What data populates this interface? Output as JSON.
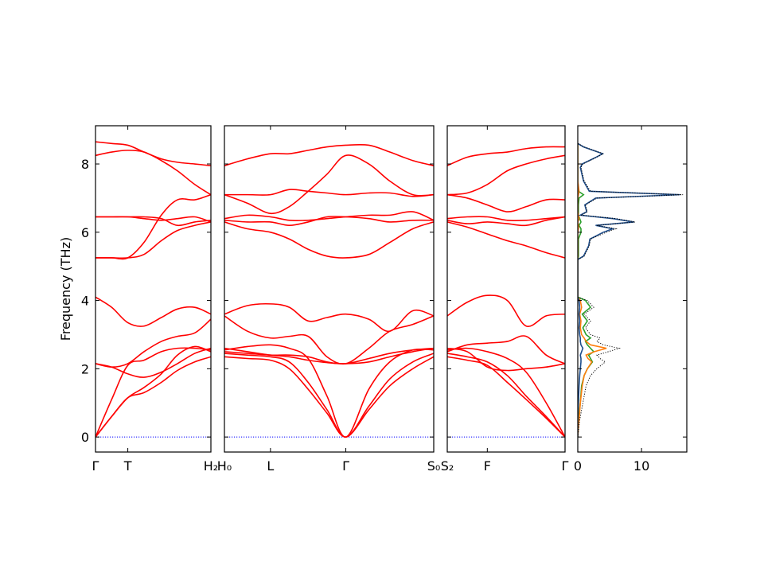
{
  "chart_data": [
    {
      "type": "line",
      "ylabel": "Frequency (THz)",
      "ylim": [
        -0.44,
        9.12
      ],
      "yticks": [
        0,
        2,
        4,
        6,
        8
      ],
      "show_ytick_labels": true,
      "xlim": [
        0,
        1
      ],
      "xticks": [
        {
          "value": 0,
          "label": "Γ"
        },
        {
          "value": 0.28,
          "label": "T"
        },
        {
          "value": 1,
          "label": "H₂"
        }
      ],
      "hline": {
        "value": 0,
        "color": "#0000ff",
        "style": "dotted"
      },
      "color": "#ff0000",
      "x": [
        0,
        0.14,
        0.28,
        0.42,
        0.57,
        0.71,
        0.86,
        1
      ],
      "bands": [
        [
          0,
          0.6,
          1.15,
          1.3,
          1.6,
          1.95,
          2.2,
          2.35
        ],
        [
          0,
          0.6,
          1.15,
          1.45,
          1.85,
          2.4,
          2.65,
          2.5
        ],
        [
          0,
          1.1,
          2.1,
          2.25,
          2.5,
          2.6,
          2.6,
          2.55
        ],
        [
          2.15,
          2.05,
          2.15,
          2.5,
          2.8,
          2.95,
          3.05,
          3.45
        ],
        [
          2.15,
          2.05,
          1.85,
          1.75,
          1.9,
          2.15,
          2.45,
          2.6
        ],
        [
          4.1,
          3.8,
          3.35,
          3.25,
          3.5,
          3.75,
          3.8,
          3.6
        ],
        [
          5.25,
          5.25,
          5.25,
          5.7,
          6.5,
          6.95,
          6.95,
          7.1
        ],
        [
          5.25,
          5.25,
          5.25,
          5.35,
          5.75,
          6.05,
          6.2,
          6.3
        ],
        [
          6.45,
          6.45,
          6.45,
          6.4,
          6.35,
          6.4,
          6.45,
          6.3
        ],
        [
          6.45,
          6.45,
          6.45,
          6.45,
          6.4,
          6.2,
          6.3,
          6.35
        ],
        [
          8.25,
          8.35,
          8.4,
          8.35,
          8.1,
          7.8,
          7.4,
          7.1
        ],
        [
          8.65,
          8.6,
          8.55,
          8.35,
          8.15,
          8.05,
          8.0,
          7.95
        ]
      ]
    },
    {
      "type": "line",
      "ylim": [
        -0.44,
        9.12
      ],
      "yticks": [
        0,
        2,
        4,
        6,
        8
      ],
      "show_ytick_labels": false,
      "xlim": [
        0,
        1
      ],
      "xticks": [
        {
          "value": 0,
          "label": "H₀"
        },
        {
          "value": 0.22,
          "label": "L"
        },
        {
          "value": 0.58,
          "label": "Γ"
        },
        {
          "value": 1,
          "label": "S₀"
        }
      ],
      "hline": {
        "value": 0,
        "color": "#0000ff",
        "style": "dotted"
      },
      "color": "#ff0000",
      "x": [
        0,
        0.11,
        0.22,
        0.31,
        0.4,
        0.49,
        0.58,
        0.69,
        0.79,
        0.9,
        1
      ],
      "bands": [
        [
          2.35,
          2.3,
          2.25,
          2.0,
          1.4,
          0.7,
          0,
          0.8,
          1.5,
          2.0,
          2.35
        ],
        [
          2.45,
          2.4,
          2.35,
          2.2,
          1.6,
          0.8,
          0,
          0.9,
          1.7,
          2.2,
          2.45
        ],
        [
          2.55,
          2.65,
          2.7,
          2.6,
          2.3,
          1.2,
          0,
          1.4,
          2.2,
          2.55,
          2.55
        ],
        [
          2.6,
          2.5,
          2.4,
          2.35,
          2.25,
          2.18,
          2.15,
          2.2,
          2.35,
          2.5,
          2.6
        ],
        [
          2.5,
          2.45,
          2.4,
          2.4,
          2.35,
          2.2,
          2.15,
          2.3,
          2.45,
          2.55,
          2.6
        ],
        [
          3.55,
          3.1,
          2.9,
          2.95,
          2.95,
          2.35,
          2.15,
          2.6,
          3.1,
          3.3,
          3.55
        ],
        [
          3.6,
          3.85,
          3.9,
          3.8,
          3.4,
          3.5,
          3.6,
          3.45,
          3.1,
          3.7,
          3.55
        ],
        [
          6.3,
          6.1,
          6.0,
          5.8,
          5.5,
          5.3,
          5.25,
          5.35,
          5.7,
          6.1,
          6.3
        ],
        [
          6.35,
          6.3,
          6.3,
          6.2,
          6.3,
          6.45,
          6.45,
          6.4,
          6.3,
          6.35,
          6.35
        ],
        [
          6.4,
          6.5,
          6.45,
          6.35,
          6.35,
          6.4,
          6.45,
          6.5,
          6.5,
          6.6,
          6.35
        ],
        [
          7.1,
          7.1,
          7.1,
          7.25,
          7.2,
          7.15,
          7.1,
          7.15,
          7.15,
          7.05,
          7.1
        ],
        [
          7.1,
          6.85,
          6.55,
          6.75,
          7.2,
          7.7,
          8.25,
          8.0,
          7.5,
          7.1,
          7.1
        ],
        [
          7.95,
          8.15,
          8.3,
          8.3,
          8.4,
          8.5,
          8.55,
          8.55,
          8.35,
          8.1,
          7.95
        ]
      ]
    },
    {
      "type": "line",
      "ylim": [
        -0.44,
        9.12
      ],
      "yticks": [
        0,
        2,
        4,
        6,
        8
      ],
      "show_ytick_labels": false,
      "xlim": [
        0,
        1
      ],
      "xticks": [
        {
          "value": 0,
          "label": "S₂"
        },
        {
          "value": 0.34,
          "label": "F"
        },
        {
          "value": 1,
          "label": "Γ"
        }
      ],
      "hline": {
        "value": 0,
        "color": "#0000ff",
        "style": "dotted"
      },
      "color": "#ff0000",
      "x": [
        0,
        0.17,
        0.34,
        0.51,
        0.67,
        0.84,
        1
      ],
      "bands": [
        [
          2.35,
          2.25,
          2.1,
          1.6,
          1.1,
          0.55,
          0
        ],
        [
          2.45,
          2.35,
          2.2,
          1.8,
          1.2,
          0.6,
          0
        ],
        [
          2.55,
          2.6,
          2.5,
          2.3,
          1.9,
          1.0,
          0
        ],
        [
          2.6,
          2.5,
          2.05,
          1.95,
          2.0,
          2.05,
          2.15
        ],
        [
          2.5,
          2.7,
          2.75,
          2.8,
          2.95,
          2.4,
          2.15
        ],
        [
          3.55,
          3.95,
          4.15,
          4.0,
          3.25,
          3.55,
          3.6
        ],
        [
          6.3,
          6.15,
          5.95,
          5.75,
          5.6,
          5.4,
          5.25
        ],
        [
          6.35,
          6.25,
          6.3,
          6.25,
          6.2,
          6.35,
          6.45
        ],
        [
          6.4,
          6.45,
          6.45,
          6.35,
          6.35,
          6.4,
          6.45
        ],
        [
          7.1,
          7.0,
          6.8,
          6.6,
          6.75,
          6.95,
          6.95
        ],
        [
          7.1,
          7.15,
          7.4,
          7.8,
          8.0,
          8.15,
          8.25
        ],
        [
          7.95,
          8.2,
          8.3,
          8.35,
          8.45,
          8.5,
          8.5
        ]
      ]
    },
    {
      "type": "dos",
      "ylim": [
        -0.44,
        9.12
      ],
      "yticks": [
        0,
        2,
        4,
        6,
        8
      ],
      "show_ytick_labels": false,
      "xlim": [
        0,
        17.1
      ],
      "xticks": [
        0,
        10
      ],
      "y": [
        0,
        0.5,
        1,
        1.5,
        1.8,
        2.0,
        2.2,
        2.3,
        2.4,
        2.5,
        2.6,
        2.7,
        2.8,
        2.9,
        3.0,
        3.2,
        3.4,
        3.6,
        3.8,
        4.0,
        4.1,
        5.2,
        5.3,
        5.6,
        5.8,
        6.0,
        6.1,
        6.2,
        6.3,
        6.4,
        6.5,
        6.6,
        6.8,
        7.0,
        7.1,
        7.2,
        7.5,
        7.9,
        8.0,
        8.2,
        8.3,
        8.5,
        8.6
      ],
      "series": [
        {
          "color": "#2ca02c",
          "style": "solid",
          "values": [
            0,
            0.1,
            0.4,
            0.6,
            1.0,
            1.5,
            2.3,
            2.0,
            1.7,
            2.5,
            2.0,
            1.5,
            1.2,
            2.0,
            1.3,
            0.8,
            1.5,
            0.7,
            2.0,
            1.2,
            0,
            0,
            0.1,
            0.1,
            0.1,
            0.5,
            0.5,
            0.2,
            0.5,
            0.3,
            0.1,
            0.1,
            0.1,
            0.2,
            0.9,
            0.1,
            0,
            0,
            0,
            0,
            0,
            0,
            0
          ]
        },
        {
          "color": "#ff7f0e",
          "style": "solid",
          "values": [
            0,
            0.2,
            0.4,
            0.7,
            1.0,
            1.5,
            2.2,
            1.6,
            1.3,
            2.6,
            4.5,
            2.0,
            1.3,
            1.0,
            0.6,
            0.4,
            0.5,
            0.3,
            0.6,
            0.4,
            0,
            0,
            0,
            0,
            0,
            0,
            0.1,
            0.1,
            0,
            0.2,
            0.1,
            0,
            0,
            0,
            0.1,
            0.2,
            0,
            0,
            0,
            0,
            0,
            0,
            0
          ]
        },
        {
          "color": "#1f4e8c",
          "style": "solid",
          "values": [
            0,
            0,
            0.1,
            0.2,
            0.3,
            0.4,
            0.5,
            0.5,
            0.4,
            0.6,
            0.8,
            0.5,
            0.4,
            0.4,
            0.3,
            0.2,
            0.3,
            0.2,
            0.3,
            0.2,
            0,
            0,
            0.9,
            1.7,
            1.9,
            4.0,
            5.5,
            2.8,
            8.8,
            5.5,
            0.4,
            1.4,
            1.1,
            2.8,
            16.0,
            1.8,
            0.9,
            0.4,
            0.7,
            2.9,
            3.9,
            0.9,
            0
          ]
        },
        {
          "color": "#000000",
          "style": "dotted",
          "values": [
            0,
            0.3,
            0.8,
            1.3,
            2.0,
            3.0,
            4.3,
            3.5,
            3.0,
            4.8,
            6.5,
            4.0,
            3.0,
            3.5,
            2.0,
            1.2,
            2.0,
            1.0,
            2.5,
            1.5,
            0,
            0,
            1.0,
            1.8,
            2.0,
            4.5,
            6.0,
            3.0,
            9.0,
            6.0,
            0.5,
            1.5,
            1.2,
            3.0,
            16.5,
            2.0,
            1.0,
            0.5,
            0.8,
            3.0,
            4.0,
            1.0,
            0
          ]
        }
      ]
    }
  ]
}
